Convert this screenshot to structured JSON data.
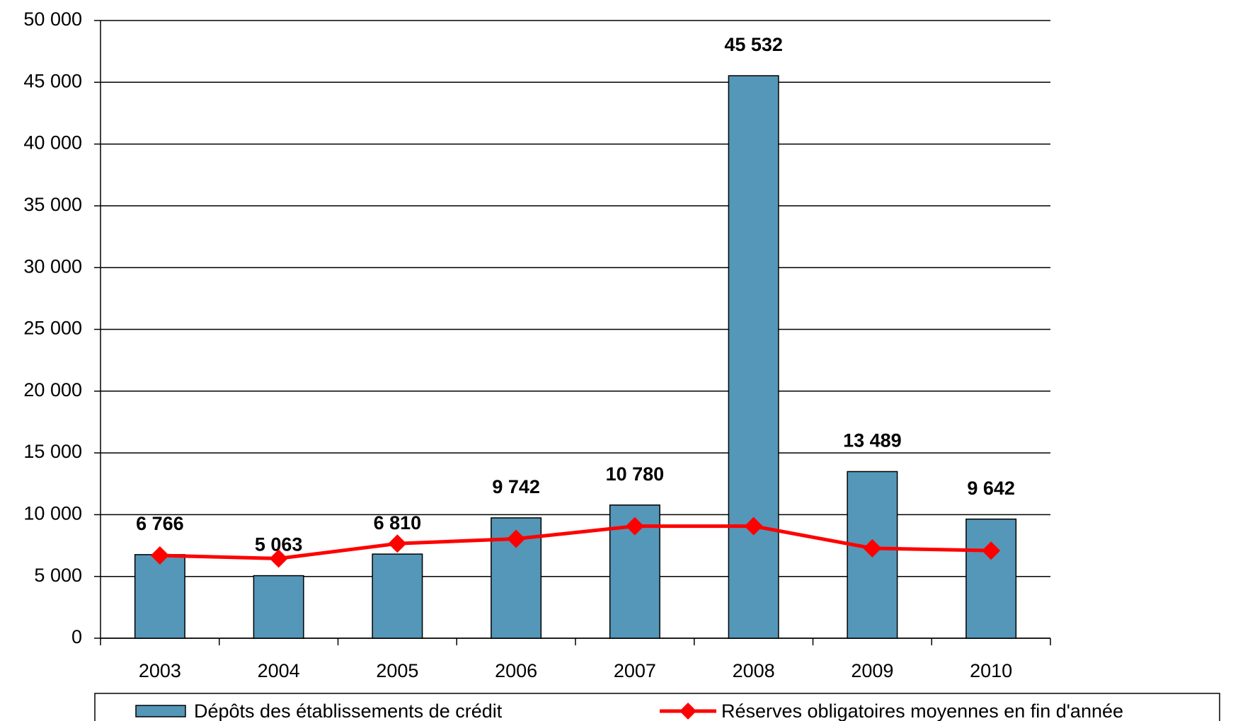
{
  "chart_data": {
    "type": "bar",
    "categories": [
      "2003",
      "2004",
      "2005",
      "2006",
      "2007",
      "2008",
      "2009",
      "2010"
    ],
    "series": [
      {
        "name": "Dépôts des établissements de crédit",
        "type": "bar",
        "color": "#5597b8",
        "values": [
          6766,
          5063,
          6810,
          9742,
          10780,
          45532,
          13489,
          9642
        ],
        "value_labels": [
          "6 766",
          "5 063",
          "6 810",
          "9 742",
          "10 780",
          "45 532",
          "13 489",
          "9 642"
        ]
      },
      {
        "name": "Réserves obligatoires moyennes en fin d'année",
        "type": "line",
        "color": "#ff0000",
        "values": [
          6700,
          6450,
          7660,
          8050,
          9070,
          9070,
          7280,
          7090
        ]
      }
    ],
    "ylim": [
      0,
      50000
    ],
    "yticks": [
      0,
      {
        "value": 5000,
        "label": "5 000"
      },
      {
        "value": 10000,
        "label": "10 000"
      },
      {
        "value": 15000,
        "label": "15 000"
      },
      {
        "value": 20000,
        "label": "20 000"
      },
      {
        "value": 25000,
        "label": "25 000"
      },
      {
        "value": 30000,
        "label": "30 000"
      },
      {
        "value": 35000,
        "label": "35 000"
      },
      {
        "value": 40000,
        "label": "40 000"
      },
      {
        "value": 45000,
        "label": "45 000"
      },
      {
        "value": 50000,
        "label": "50 000"
      }
    ],
    "grid": true,
    "legend": "bottom"
  }
}
